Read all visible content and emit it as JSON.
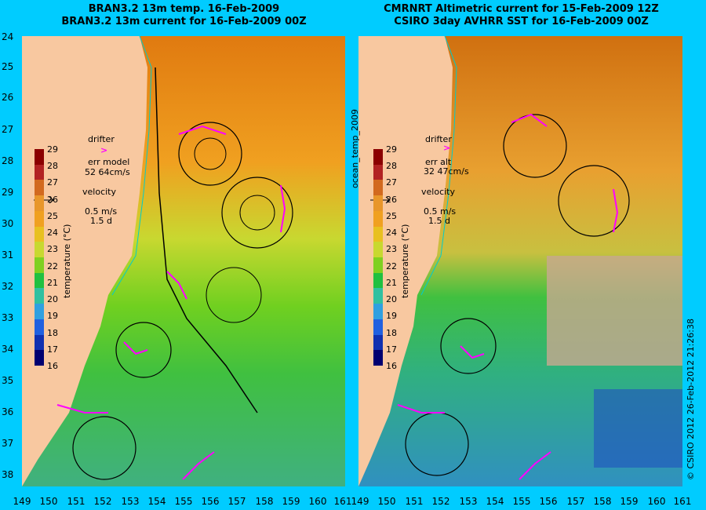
{
  "left": {
    "title1": "BRAN3.2 13m temp. 16-Feb-2009",
    "title2": "BRAN3.2 13m current for 16-Feb-2009 00Z",
    "legend": {
      "drifter": "drifter",
      "err_label": "err model",
      "err_value": "52 64cm/s",
      "velocity": "velocity",
      "speed": "0.5 m/s",
      "duration": "1.5 d"
    }
  },
  "right": {
    "title1": "CMRNRT Altimetric current for 15-Feb-2009 12Z",
    "title2": "CSIRO 3day AVHRR SST for 16-Feb-2009 00Z",
    "legend": {
      "drifter": "drifter",
      "err_label": "err alt",
      "err_value": "32 47cm/s",
      "velocity": "velocity",
      "speed": "0.5 m/s",
      "duration": "1.5 d"
    }
  },
  "colorbar": {
    "label": "temperature (°C)",
    "ticks": [
      "29",
      "28",
      "27",
      "26",
      "25",
      "24",
      "23",
      "22",
      "21",
      "20",
      "19",
      "18",
      "17",
      "16"
    ],
    "colors": [
      "#8b0000",
      "#b22222",
      "#d2691e",
      "#e8962a",
      "#f0a020",
      "#e8c020",
      "#c8d830",
      "#80d020",
      "#20c040",
      "#30c0a0",
      "#30a0e0",
      "#2060e0",
      "#1030b0",
      "#000070"
    ]
  },
  "y_axis": [
    "24",
    "25",
    "26",
    "27",
    "28",
    "29",
    "30",
    "31",
    "32",
    "33",
    "34",
    "35",
    "36",
    "37",
    "38"
  ],
  "x_axis": [
    "149",
    "150",
    "151",
    "152",
    "153",
    "154",
    "155",
    "156",
    "157",
    "158",
    "159",
    "160",
    "161"
  ],
  "side_label": "ocean_temp_2009",
  "credit": "© CSIRO 2012   26-Feb-2012 21:26:38",
  "colors": {
    "land": "#f8c8a0",
    "drifter": "#ff00ff",
    "background": "#00ccff"
  }
}
